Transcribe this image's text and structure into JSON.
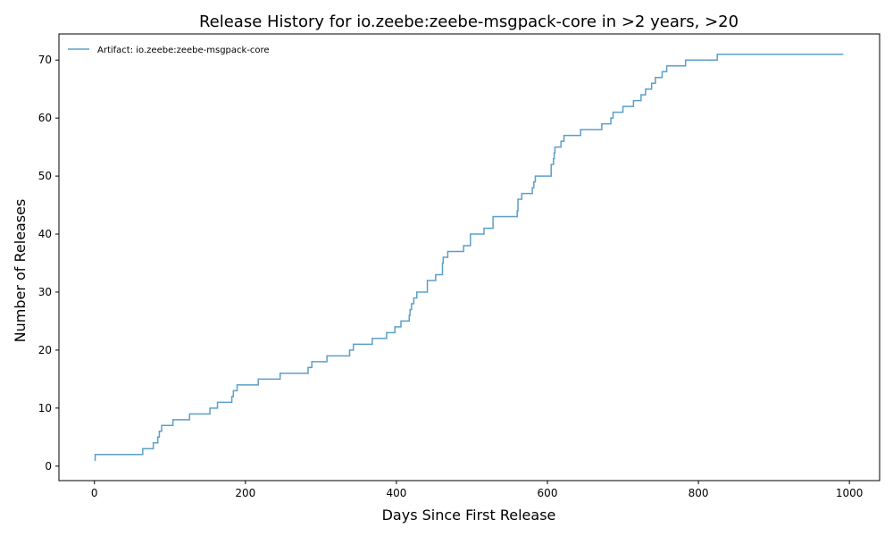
{
  "chart_data": {
    "type": "line",
    "drawstyle": "steps-post",
    "title": "Release History for io.zeebe:zeebe-msgpack-core in >2 years, >20",
    "xlabel": "Days Since First Release",
    "ylabel": "Number of Releases",
    "xlim": [
      -47,
      1040
    ],
    "ylim": [
      -2.5,
      74.5
    ],
    "xticks": [
      0,
      200,
      400,
      600,
      800,
      1000
    ],
    "yticks": [
      0,
      10,
      20,
      30,
      40,
      50,
      60,
      70
    ],
    "grid": false,
    "legend_position": "top-left",
    "series": [
      {
        "name": "Artifact: io.zeebe:zeebe-msgpack-core",
        "color": "#5b9fc9",
        "x": [
          0,
          1,
          64,
          78,
          84,
          86,
          89,
          92,
          104,
          126,
          153,
          163,
          182,
          184,
          186,
          189,
          217,
          246,
          283,
          288,
          308,
          338,
          343,
          368,
          387,
          398,
          406,
          417,
          418,
          420,
          423,
          427,
          441,
          452,
          461,
          462,
          468,
          489,
          498,
          516,
          528,
          560,
          561,
          566,
          580,
          582,
          584,
          586,
          605,
          608,
          609,
          610,
          618,
          622,
          644,
          672,
          684,
          687,
          700,
          714,
          724,
          730,
          738,
          743,
          752,
          758,
          783,
          825,
          992
        ],
        "y": [
          1,
          2,
          3,
          4,
          5,
          6,
          7,
          7,
          8,
          9,
          10,
          11,
          12,
          13,
          13,
          14,
          15,
          16,
          17,
          18,
          19,
          20,
          21,
          22,
          23,
          24,
          25,
          26,
          27,
          28,
          29,
          30,
          32,
          33,
          35,
          36,
          37,
          38,
          40,
          41,
          43,
          44,
          46,
          47,
          48,
          49,
          50,
          50,
          52,
          53,
          54,
          55,
          56,
          57,
          58,
          59,
          60,
          61,
          62,
          63,
          64,
          65,
          66,
          67,
          68,
          69,
          70,
          71,
          71
        ]
      }
    ]
  }
}
